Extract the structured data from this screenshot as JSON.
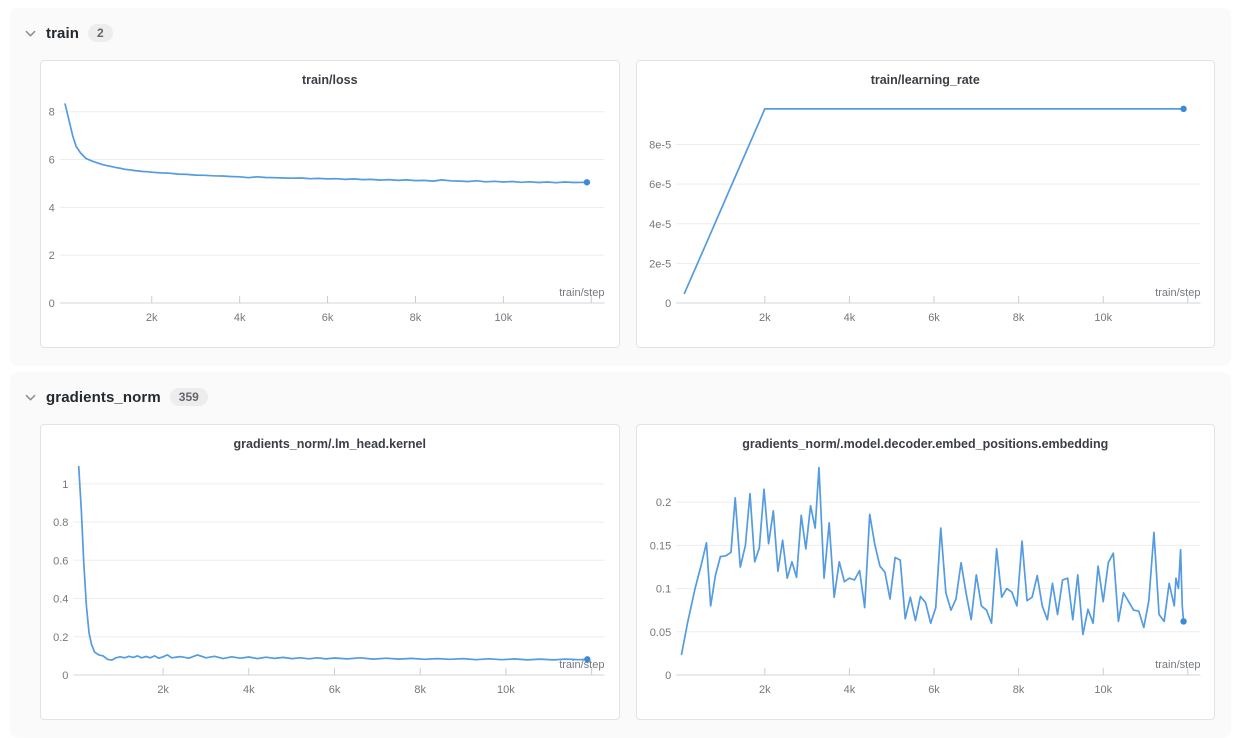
{
  "colors": {
    "line": "#549be1",
    "end_dot": "#3e8ad8",
    "panel_bg": "#fafafa",
    "card_border": "#e3e3e6",
    "grid": "#ededed",
    "axis_baseline": "#d5d5d8",
    "tick": "#c9cccf",
    "tick_label": "#74787e",
    "title_text": "#3b3e44"
  },
  "sections": [
    {
      "label": "train",
      "count": "2",
      "chart_indexes": [
        0,
        1
      ]
    },
    {
      "label": "gradients_norm",
      "count": "359",
      "chart_indexes": [
        2,
        3
      ]
    }
  ],
  "chart_data": [
    {
      "type": "line",
      "title": "train/loss",
      "xlabel": "train/step",
      "xlim": [
        0,
        12300
      ],
      "ylim": [
        0,
        8.7
      ],
      "x_ticks": [
        [
          2000,
          "2k"
        ],
        [
          4000,
          "4k"
        ],
        [
          6000,
          "6k"
        ],
        [
          8000,
          "8k"
        ],
        [
          10000,
          "10k"
        ],
        [
          12000,
          ""
        ]
      ],
      "y_ticks": [
        [
          0,
          "0"
        ],
        [
          2,
          "2"
        ],
        [
          4,
          "4"
        ],
        [
          6,
          "6"
        ],
        [
          8,
          "8"
        ]
      ],
      "legend": "none",
      "grid": "horizontal",
      "end_dot": true,
      "points": [
        [
          30,
          8.32
        ],
        [
          120,
          7.62
        ],
        [
          200,
          7.0
        ],
        [
          280,
          6.55
        ],
        [
          380,
          6.28
        ],
        [
          500,
          6.05
        ],
        [
          600,
          5.97
        ],
        [
          700,
          5.9
        ],
        [
          800,
          5.84
        ],
        [
          900,
          5.78
        ],
        [
          1000,
          5.74
        ],
        [
          1100,
          5.7
        ],
        [
          1200,
          5.66
        ],
        [
          1300,
          5.63
        ],
        [
          1400,
          5.59
        ],
        [
          1500,
          5.57
        ],
        [
          1600,
          5.54
        ],
        [
          1700,
          5.52
        ],
        [
          1800,
          5.5
        ],
        [
          1900,
          5.49
        ],
        [
          2000,
          5.47
        ],
        [
          2200,
          5.44
        ],
        [
          2400,
          5.43
        ],
        [
          2600,
          5.39
        ],
        [
          2800,
          5.38
        ],
        [
          3000,
          5.35
        ],
        [
          3200,
          5.34
        ],
        [
          3400,
          5.32
        ],
        [
          3600,
          5.31
        ],
        [
          3800,
          5.29
        ],
        [
          4000,
          5.28
        ],
        [
          4200,
          5.24
        ],
        [
          4400,
          5.28
        ],
        [
          4600,
          5.25
        ],
        [
          4800,
          5.24
        ],
        [
          5000,
          5.23
        ],
        [
          5200,
          5.22
        ],
        [
          5400,
          5.23
        ],
        [
          5600,
          5.2
        ],
        [
          5800,
          5.21
        ],
        [
          6000,
          5.19
        ],
        [
          6200,
          5.2
        ],
        [
          6400,
          5.17
        ],
        [
          6600,
          5.19
        ],
        [
          6800,
          5.16
        ],
        [
          7000,
          5.17
        ],
        [
          7200,
          5.14
        ],
        [
          7400,
          5.16
        ],
        [
          7600,
          5.13
        ],
        [
          7800,
          5.15
        ],
        [
          8000,
          5.12
        ],
        [
          8200,
          5.13
        ],
        [
          8400,
          5.1
        ],
        [
          8600,
          5.15
        ],
        [
          8800,
          5.11
        ],
        [
          9000,
          5.1
        ],
        [
          9200,
          5.08
        ],
        [
          9400,
          5.11
        ],
        [
          9600,
          5.07
        ],
        [
          9800,
          5.09
        ],
        [
          10000,
          5.06
        ],
        [
          10200,
          5.08
        ],
        [
          10400,
          5.05
        ],
        [
          10600,
          5.07
        ],
        [
          10800,
          5.04
        ],
        [
          11000,
          5.06
        ],
        [
          11200,
          5.03
        ],
        [
          11400,
          5.06
        ],
        [
          11600,
          5.04
        ],
        [
          11900,
          5.05
        ]
      ]
    },
    {
      "type": "line",
      "title": "train/learning_rate",
      "xlabel": "train/step",
      "xlim": [
        0,
        12300
      ],
      "ylim": [
        0,
        0.000105
      ],
      "x_ticks": [
        [
          2000,
          "2k"
        ],
        [
          4000,
          "4k"
        ],
        [
          6000,
          "6k"
        ],
        [
          8000,
          "8k"
        ],
        [
          10000,
          "10k"
        ],
        [
          12000,
          ""
        ]
      ],
      "y_ticks": [
        [
          0,
          "0"
        ],
        [
          2e-05,
          "2e-5"
        ],
        [
          4e-05,
          "4e-5"
        ],
        [
          6e-05,
          "6e-5"
        ],
        [
          8e-05,
          "8e-5"
        ]
      ],
      "legend": "none",
      "grid": "horizontal",
      "end_dot": true,
      "points": [
        [
          100,
          4.9e-06
        ],
        [
          600,
          2.94e-05
        ],
        [
          1200,
          5.88e-05
        ],
        [
          1800,
          8.82e-05
        ],
        [
          2000,
          9.8e-05
        ],
        [
          6000,
          9.8e-05
        ],
        [
          11900,
          9.8e-05
        ]
      ]
    },
    {
      "type": "line",
      "title": "gradients_norm/.lm_head.kernel",
      "xlabel": "train/step",
      "xlim": [
        0,
        12300
      ],
      "ylim": [
        0,
        1.13
      ],
      "x_ticks": [
        [
          2000,
          "2k"
        ],
        [
          4000,
          "4k"
        ],
        [
          6000,
          "6k"
        ],
        [
          8000,
          "8k"
        ],
        [
          10000,
          "10k"
        ],
        [
          12000,
          ""
        ]
      ],
      "y_ticks": [
        [
          0,
          "0"
        ],
        [
          0.2,
          "0.2"
        ],
        [
          0.4,
          "0.4"
        ],
        [
          0.6,
          "0.6"
        ],
        [
          0.8,
          "0.8"
        ],
        [
          1,
          "1"
        ]
      ],
      "legend": "none",
      "grid": "horizontal",
      "end_dot": true,
      "points": [
        [
          30,
          1.09
        ],
        [
          90,
          0.86
        ],
        [
          150,
          0.58
        ],
        [
          210,
          0.36
        ],
        [
          270,
          0.22
        ],
        [
          330,
          0.16
        ],
        [
          400,
          0.12
        ],
        [
          500,
          0.105
        ],
        [
          600,
          0.1
        ],
        [
          700,
          0.082
        ],
        [
          800,
          0.078
        ],
        [
          900,
          0.09
        ],
        [
          1000,
          0.095
        ],
        [
          1100,
          0.09
        ],
        [
          1200,
          0.098
        ],
        [
          1300,
          0.092
        ],
        [
          1400,
          0.1
        ],
        [
          1500,
          0.09
        ],
        [
          1600,
          0.097
        ],
        [
          1700,
          0.09
        ],
        [
          1800,
          0.1
        ],
        [
          1900,
          0.088
        ],
        [
          2000,
          0.095
        ],
        [
          2100,
          0.105
        ],
        [
          2200,
          0.09
        ],
        [
          2400,
          0.096
        ],
        [
          2600,
          0.088
        ],
        [
          2800,
          0.105
        ],
        [
          3000,
          0.09
        ],
        [
          3200,
          0.098
        ],
        [
          3400,
          0.086
        ],
        [
          3600,
          0.095
        ],
        [
          3800,
          0.088
        ],
        [
          4000,
          0.094
        ],
        [
          4200,
          0.086
        ],
        [
          4400,
          0.093
        ],
        [
          4600,
          0.087
        ],
        [
          4800,
          0.092
        ],
        [
          5000,
          0.086
        ],
        [
          5200,
          0.09
        ],
        [
          5400,
          0.085
        ],
        [
          5600,
          0.09
        ],
        [
          5800,
          0.084
        ],
        [
          6000,
          0.089
        ],
        [
          6300,
          0.084
        ],
        [
          6600,
          0.09
        ],
        [
          6900,
          0.083
        ],
        [
          7200,
          0.088
        ],
        [
          7500,
          0.083
        ],
        [
          7800,
          0.087
        ],
        [
          8100,
          0.082
        ],
        [
          8400,
          0.086
        ],
        [
          8700,
          0.082
        ],
        [
          9000,
          0.086
        ],
        [
          9300,
          0.08
        ],
        [
          9600,
          0.085
        ],
        [
          9900,
          0.08
        ],
        [
          10200,
          0.084
        ],
        [
          10500,
          0.079
        ],
        [
          10800,
          0.083
        ],
        [
          11100,
          0.079
        ],
        [
          11400,
          0.083
        ],
        [
          11700,
          0.08
        ],
        [
          11900,
          0.082
        ]
      ]
    },
    {
      "type": "line",
      "title": "gradients_norm/.model.decoder.embed_positions.embedding",
      "xlabel": "train/step",
      "xlim": [
        0,
        12300
      ],
      "ylim": [
        0,
        0.25
      ],
      "x_ticks": [
        [
          2000,
          "2k"
        ],
        [
          4000,
          "4k"
        ],
        [
          6000,
          "6k"
        ],
        [
          8000,
          "8k"
        ],
        [
          10000,
          "10k"
        ],
        [
          12000,
          ""
        ]
      ],
      "y_ticks": [
        [
          0,
          "0"
        ],
        [
          0.05,
          "0.05"
        ],
        [
          0.1,
          "0.1"
        ],
        [
          0.15,
          "0.15"
        ],
        [
          0.2,
          "0.2"
        ]
      ],
      "legend": "none",
      "grid": "horizontal",
      "end_dot": true,
      "points": [
        [
          30,
          0.024
        ],
        [
          180,
          0.062
        ],
        [
          350,
          0.1
        ],
        [
          500,
          0.128
        ],
        [
          620,
          0.153
        ],
        [
          720,
          0.08
        ],
        [
          830,
          0.115
        ],
        [
          950,
          0.137
        ],
        [
          1080,
          0.138
        ],
        [
          1200,
          0.142
        ],
        [
          1300,
          0.205
        ],
        [
          1420,
          0.125
        ],
        [
          1540,
          0.15
        ],
        [
          1650,
          0.21
        ],
        [
          1760,
          0.131
        ],
        [
          1870,
          0.147
        ],
        [
          1980,
          0.215
        ],
        [
          2090,
          0.152
        ],
        [
          2200,
          0.19
        ],
        [
          2310,
          0.12
        ],
        [
          2420,
          0.156
        ],
        [
          2530,
          0.112
        ],
        [
          2640,
          0.131
        ],
        [
          2750,
          0.113
        ],
        [
          2860,
          0.185
        ],
        [
          2970,
          0.146
        ],
        [
          3080,
          0.196
        ],
        [
          3190,
          0.17
        ],
        [
          3280,
          0.24
        ],
        [
          3400,
          0.112
        ],
        [
          3520,
          0.176
        ],
        [
          3640,
          0.09
        ],
        [
          3760,
          0.131
        ],
        [
          3880,
          0.108
        ],
        [
          4000,
          0.112
        ],
        [
          4120,
          0.11
        ],
        [
          4240,
          0.121
        ],
        [
          4360,
          0.078
        ],
        [
          4480,
          0.186
        ],
        [
          4600,
          0.151
        ],
        [
          4720,
          0.126
        ],
        [
          4840,
          0.119
        ],
        [
          4960,
          0.088
        ],
        [
          5080,
          0.136
        ],
        [
          5200,
          0.133
        ],
        [
          5320,
          0.065
        ],
        [
          5440,
          0.09
        ],
        [
          5560,
          0.063
        ],
        [
          5680,
          0.091
        ],
        [
          5800,
          0.084
        ],
        [
          5920,
          0.06
        ],
        [
          6040,
          0.078
        ],
        [
          6160,
          0.17
        ],
        [
          6280,
          0.095
        ],
        [
          6400,
          0.075
        ],
        [
          6520,
          0.088
        ],
        [
          6640,
          0.13
        ],
        [
          6760,
          0.094
        ],
        [
          6880,
          0.064
        ],
        [
          7000,
          0.116
        ],
        [
          7120,
          0.08
        ],
        [
          7240,
          0.075
        ],
        [
          7360,
          0.06
        ],
        [
          7480,
          0.146
        ],
        [
          7600,
          0.09
        ],
        [
          7720,
          0.1
        ],
        [
          7840,
          0.096
        ],
        [
          7960,
          0.08
        ],
        [
          8080,
          0.155
        ],
        [
          8200,
          0.086
        ],
        [
          8320,
          0.09
        ],
        [
          8440,
          0.115
        ],
        [
          8560,
          0.08
        ],
        [
          8680,
          0.064
        ],
        [
          8800,
          0.106
        ],
        [
          8920,
          0.07
        ],
        [
          9040,
          0.11
        ],
        [
          9160,
          0.112
        ],
        [
          9280,
          0.064
        ],
        [
          9400,
          0.116
        ],
        [
          9520,
          0.047
        ],
        [
          9640,
          0.076
        ],
        [
          9760,
          0.06
        ],
        [
          9880,
          0.126
        ],
        [
          10000,
          0.085
        ],
        [
          10120,
          0.13
        ],
        [
          10240,
          0.141
        ],
        [
          10360,
          0.062
        ],
        [
          10480,
          0.095
        ],
        [
          10600,
          0.085
        ],
        [
          10720,
          0.075
        ],
        [
          10840,
          0.074
        ],
        [
          10960,
          0.055
        ],
        [
          11080,
          0.086
        ],
        [
          11200,
          0.165
        ],
        [
          11320,
          0.07
        ],
        [
          11440,
          0.062
        ],
        [
          11560,
          0.106
        ],
        [
          11680,
          0.08
        ],
        [
          11720,
          0.112
        ],
        [
          11780,
          0.1
        ],
        [
          11830,
          0.145
        ],
        [
          11870,
          0.08
        ],
        [
          11900,
          0.062
        ]
      ]
    }
  ]
}
